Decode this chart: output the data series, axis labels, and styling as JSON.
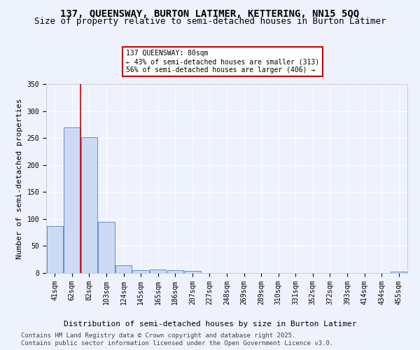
{
  "title1": "137, QUEENSWAY, BURTON LATIMER, KETTERING, NN15 5QQ",
  "title2": "Size of property relative to semi-detached houses in Burton Latimer",
  "xlabel": "Distribution of semi-detached houses by size in Burton Latimer",
  "ylabel": "Number of semi-detached properties",
  "footer1": "Contains HM Land Registry data © Crown copyright and database right 2025.",
  "footer2": "Contains public sector information licensed under the Open Government Licence v3.0.",
  "categories": [
    "41sqm",
    "62sqm",
    "82sqm",
    "103sqm",
    "124sqm",
    "145sqm",
    "165sqm",
    "186sqm",
    "207sqm",
    "227sqm",
    "248sqm",
    "269sqm",
    "289sqm",
    "310sqm",
    "331sqm",
    "352sqm",
    "372sqm",
    "393sqm",
    "414sqm",
    "434sqm",
    "455sqm"
  ],
  "values": [
    87,
    270,
    251,
    94,
    14,
    5,
    7,
    5,
    4,
    0,
    0,
    0,
    0,
    0,
    0,
    0,
    0,
    0,
    0,
    0,
    3
  ],
  "bar_color": "#ccdaf5",
  "bar_edge_color": "#6090c8",
  "vline_color": "#cc0000",
  "annotation_line1": "137 QUEENSWAY: 80sqm",
  "annotation_line2": "← 43% of semi-detached houses are smaller (313)",
  "annotation_line3": "56% of semi-detached houses are larger (406) →",
  "annotation_box_color": "#cc0000",
  "background_color": "#eef2fc",
  "grid_color": "#ffffff",
  "ylim": [
    0,
    350
  ],
  "title1_fontsize": 10,
  "title2_fontsize": 9,
  "axis_label_fontsize": 8,
  "tick_fontsize": 7,
  "footer_fontsize": 6.5
}
